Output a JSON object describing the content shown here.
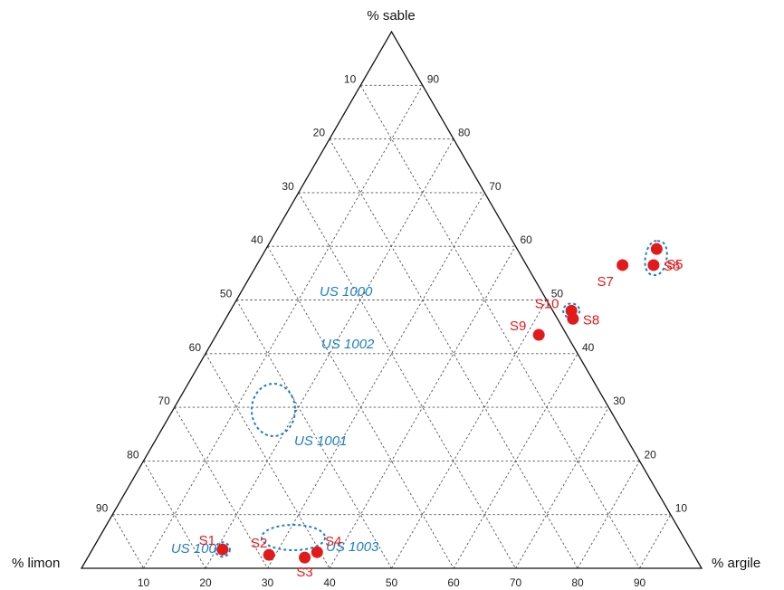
{
  "chart_data": {
    "type": "ternary",
    "vertex_labels": {
      "top": "% sable",
      "left": "% limon",
      "right": "% argile"
    },
    "tick_values": [
      10,
      20,
      30,
      40,
      50,
      60,
      70,
      80,
      90
    ],
    "grid": true,
    "colors": {
      "points": "#e31a1c",
      "groups": "#1b7fc4",
      "grid": "#555555",
      "axes": "#111111"
    },
    "points": [
      {
        "label": "S1",
        "sable": 3.5,
        "argile": 21
      },
      {
        "label": "S2",
        "sable": 2.5,
        "argile": 29
      },
      {
        "label": "S3",
        "sable": 2,
        "argile": 35
      },
      {
        "label": "S4",
        "sable": 3,
        "argile": 36.5
      },
      {
        "label": "S5",
        "sable": 59.5,
        "argile": 63
      },
      {
        "label": "S6",
        "sable": 56.5,
        "argile": 64
      },
      {
        "label": "S7",
        "sable": 56.5,
        "argile": 59
      },
      {
        "label": "S8",
        "sable": 46.5,
        "argile": 56
      },
      {
        "label": "S9",
        "sable": 43.5,
        "argile": 52
      },
      {
        "label": "S10",
        "sable": 48,
        "argile": 55
      }
    ],
    "groups": [
      {
        "label": "US 1000",
        "members": [
          "S10"
        ]
      },
      {
        "label": "US 1002",
        "members": [
          "S6",
          "S5"
        ]
      },
      {
        "label": "US 1001",
        "members": [
          "S9",
          "S8",
          "S7"
        ]
      },
      {
        "label": "US 1004",
        "members": [
          "S1"
        ]
      },
      {
        "label": "US 1003",
        "members": [
          "S2",
          "S3",
          "S4"
        ]
      }
    ]
  }
}
